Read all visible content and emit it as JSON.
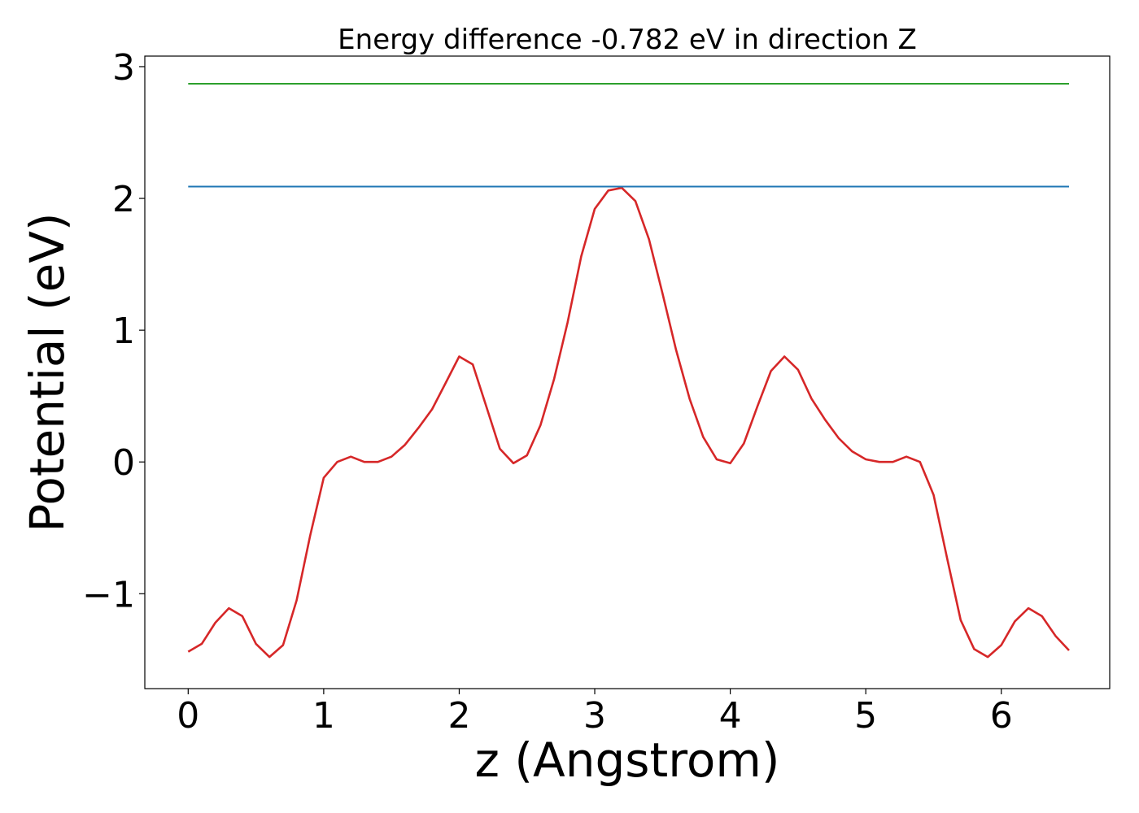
{
  "chart_data": {
    "type": "line",
    "title": "Energy difference -0.782 eV in direction Z",
    "xlabel": "z (Angstrom)",
    "ylabel": "Potential (eV)",
    "xlim": [
      -0.32,
      6.8
    ],
    "ylim": [
      -1.72,
      3.08
    ],
    "xticks": [
      0,
      1,
      2,
      3,
      4,
      5,
      6
    ],
    "xtick_labels": [
      "0",
      "1",
      "2",
      "3",
      "4",
      "5",
      "6"
    ],
    "yticks": [
      -1,
      0,
      1,
      2,
      3
    ],
    "ytick_labels": [
      "−1",
      "0",
      "1",
      "2",
      "3"
    ],
    "grid": false,
    "series": [
      {
        "color": "#d62728",
        "x": [
          0.0,
          0.1,
          0.2,
          0.3,
          0.4,
          0.5,
          0.6,
          0.7,
          0.8,
          0.9,
          1.0,
          1.1,
          1.2,
          1.3,
          1.4,
          1.5,
          1.6,
          1.7,
          1.8,
          1.9,
          2.0,
          2.1,
          2.2,
          2.3,
          2.4,
          2.5,
          2.6,
          2.7,
          2.8,
          2.9,
          3.0,
          3.1,
          3.2,
          3.3,
          3.4,
          3.5,
          3.6,
          3.7,
          3.8,
          3.9,
          4.0,
          4.1,
          4.2,
          4.3,
          4.4,
          4.5,
          4.6,
          4.7,
          4.8,
          4.9,
          5.0,
          5.1,
          5.2,
          5.3,
          5.4,
          5.5,
          5.6,
          5.7,
          5.8,
          5.9,
          6.0,
          6.1,
          6.2,
          6.3,
          6.4,
          6.5
        ],
        "y": [
          -1.44,
          -1.38,
          -1.22,
          -1.11,
          -1.17,
          -1.38,
          -1.48,
          -1.39,
          -1.05,
          -0.56,
          -0.12,
          0.0,
          0.04,
          0.0,
          0.0,
          0.04,
          0.13,
          0.26,
          0.4,
          0.6,
          0.8,
          0.74,
          0.42,
          0.1,
          -0.01,
          0.05,
          0.28,
          0.63,
          1.06,
          1.56,
          1.92,
          2.06,
          2.08,
          1.98,
          1.69,
          1.28,
          0.85,
          0.48,
          0.19,
          0.02,
          -0.01,
          0.14,
          0.42,
          0.69,
          0.8,
          0.7,
          0.48,
          0.32,
          0.18,
          0.08,
          0.02,
          0.0,
          0.0,
          0.04,
          0.0,
          -0.25,
          -0.73,
          -1.2,
          -1.42,
          -1.48,
          -1.39,
          -1.21,
          -1.11,
          -1.17,
          -1.32,
          -1.43
        ]
      },
      {
        "color": "#1f77b4",
        "x": [
          0.0,
          6.5
        ],
        "y": [
          2.09,
          2.09
        ]
      },
      {
        "color": "#2ca02c",
        "x": [
          0.0,
          6.5
        ],
        "y": [
          2.87,
          2.87
        ]
      }
    ]
  }
}
